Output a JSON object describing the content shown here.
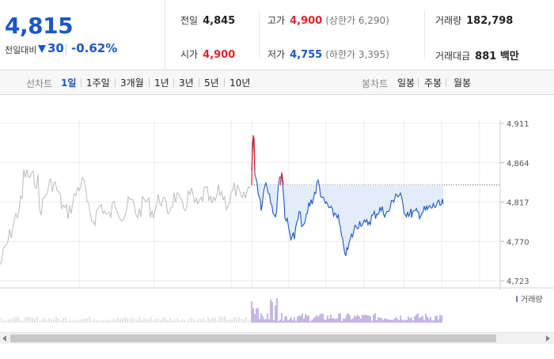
{
  "summary": {
    "price": "4,815",
    "change_label": "전일대비",
    "change_value": "30",
    "change_pct": "-0.62%",
    "stats": {
      "prev_close": {
        "label": "전일",
        "value": "4,845"
      },
      "high": {
        "label": "고가",
        "value": "4,900",
        "sub": "(상한가 6,290)"
      },
      "volume": {
        "label": "거래량",
        "value": "182,798"
      },
      "open": {
        "label": "시가",
        "value": "4,900"
      },
      "low": {
        "label": "저가",
        "value": "4,755",
        "sub": "(하한가 3,395)"
      },
      "amount": {
        "label": "거래대금",
        "value": "881 백만"
      }
    }
  },
  "controls": {
    "line_label": "선차트",
    "periods": [
      "1일",
      "1주일",
      "3개월",
      "1년",
      "3년",
      "5년",
      "10년"
    ],
    "candle_label": "봉차트",
    "candles": [
      "일봉",
      "주봉",
      "월봉"
    ]
  },
  "chart_data": {
    "type": "line",
    "yticks": [
      "4,911",
      "4,864",
      "4,817",
      "4,770",
      "4,723"
    ],
    "ylim": [
      4723,
      4911
    ],
    "prev_close": 4845,
    "volume_legend": "거래량",
    "colors": {
      "up": "#e0242b",
      "down": "#1a56c7",
      "fill": "#e3ecfa",
      "prev": "#bbbbbb"
    }
  }
}
